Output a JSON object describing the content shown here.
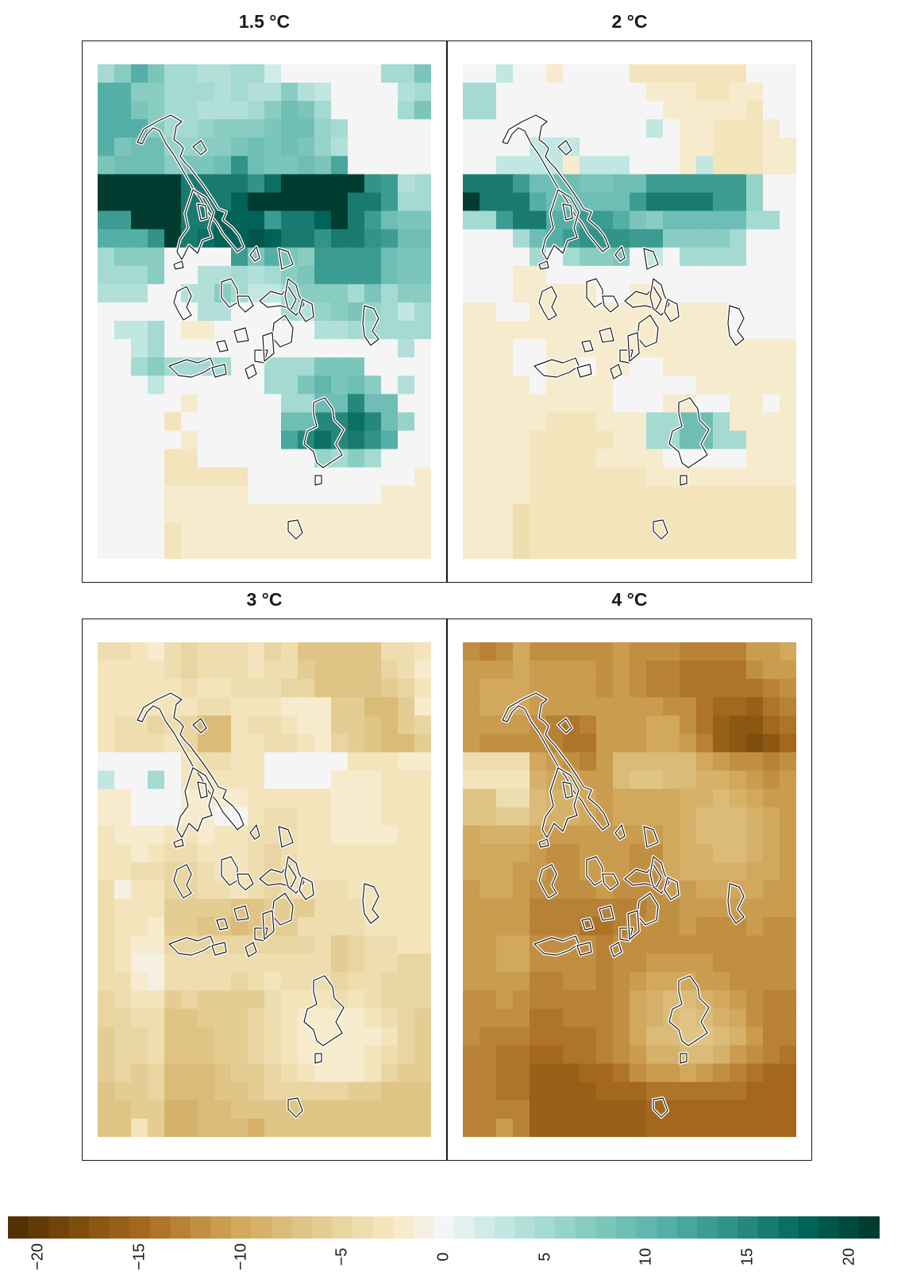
{
  "chart_data": {
    "type": "heatmap",
    "panels": [
      {
        "title": "1.5 °C",
        "rows": [
          "5 7 11 8 5 5 4 4 5 5 2 0 0 0 0 0 0 5 5 8",
          "11 11 7 7 5 5 5 4 5 4 4 7 4 3 0 0 0 0 4 5",
          "11 11 8 7 5 5 4 4 4 5 7 9 8 5 0 0 0 0 5 8",
          "11 11 11 7 5 5 6 7 7 7 8 9 9 6 5 0 0 0 0 0",
          "11 8 9 9 6 6 7 7 8 9 8 9 8 6 4 0 0 0 0 0",
          "8 9 9 9 7 8 8 9 14 9 8 8 9 8 12 0 0 0 0 0",
          "21 21 21 21 21 16 16 16 16 14 17 21 21 21 21 21 14 13 4 5",
          "21 21 21 21 21 16 16 16 18 21 21 21 21 21 21 16 16 13 5 5",
          "13 13 21 21 21 16 16 18 18 18 13 16 16 18 21 16 13 9 8 8",
          "11 11 11 14 21 16 17 18 18 19 18 16 16 14 16 16 14 13 9 9",
          "5 7 7 7 0 0 0 0 13 8 11 8 7 13 13 13 13 9 8 8",
          "5 5 5 7 0 0 4 4 5 4 5 7 8 13 13 13 13 9 8 8",
          "4 4 4 0 0 4 4 7 5 3 3 5 7 7 7 5 8 5 7 7",
          "0 0 0 0 0 0 4 4 0 0 0 5 4 6 7 8 6 5 3 5",
          "0 3 3 5 0 -2 -2 0 0 0 0 0 0 4 4 5 5 5 5 5",
          "0 0 3 5 0 0 0 0 0 0 0 0 0 0 0 0 0 0 4 0",
          "0 0 5 7 5 5 5 5 0 0 5 5 5 8 8 8 0 0 0 0",
          "0 0 0 3 0 0 0 0 0 0 5 5 8 10 8 9 7 0 4 0",
          "0 0 0 0 0 -2 0 0 0 0 0 5 5 9 9 15 9 9 0 0",
          "0 0 0 0 -3 0 0 0 0 0 0 9 9 15 15 17 15 9 6 0",
          "0 0 0 0 0 -2 0 0 0 0 0 12 15 17 15 16 14 11 0 0",
          "0 0 0 0 -3 -3 0 0 0 0 0 0 0 6 5 7 5 0 0 0",
          "0 0 0 0 -3 -3 -3 -3 -3 0 0 0 0 0 0 0 0 0 0 -2",
          "0 0 0 0 -2 -2 -2 -2 -2 0 0 0 0 0 0 0 0 -2 -2 -2",
          "0 0 0 0 -2 -2 -2 -2 -2 -2 -2 -2 -2 -2 -2 -2 -2 -2 -2 -2",
          "0 0 0 0 -3 -2 -2 -2 -2 -2 -2 -2 -2 -2 -2 -2 -2 -2 -2 -2",
          "0 0 0 0 -3 -2 -2 -2 -2 -2 -2 -2 -2 -2 -2 -2 -2 -2 -2 -2"
        ]
      },
      {
        "title": "2 °C",
        "rows": [
          "0 0 3 0 0 -2 0 0 0 0 -3 -3 -3 -3 -3 -3 -3 0 0 0",
          "5 5 0 0 0 0 0 0 0 0 0 -2 -2 -2 -3 -3 -2 -2 0 0",
          "5 5 0 0 0 0 0 0 0 0 0 0 -2 -2 -2 -2 -2 -3 0 0",
          "0 0 0 0 0 0 0 0 0 0 0 3 0 -2 -2 -3 -3 -3 -2 0",
          "0 0 0 0 3 3 3 0 0 0 0 0 0 -2 -2 -3 -3 -3 -2 -2",
          "0 0 3 3 3 3 -2 3 3 3 0 0 0 -2 3 -3 -3 -3 -2 -2",
          "16 16 16 13 9 9 9 8 8 9 9 13 13 13 13 13 13 6 0 0",
          "21 16 16 16 11 9 9 9 9 9 13 16 16 16 16 13 13 6 0 0",
          "5 5 13 16 16 11 11 13 13 11 8 7 9 9 9 9 9 5 5 0",
          "0 0 0 5 9 11 13 14 14 14 13 13 7 7 7 7 5 0 0 0",
          "0 0 0 0 5 0 5 7 7 8 0 3 0 5 5 5 5 0 0 0",
          "0 0 0 -2 -2 0 0 0 0 0 0 0 0 0 0 0 0 0 0 0",
          "0 0 0 -2 -2 -2 -2 -2 0 0 -2 -2 0 0 0 0 0 0 0 0",
          "-2 -2 0 0 -2 -2 -2 -2 -2 -2 -2 -2 -2 -2 -2 -2 0 0 0 0",
          "-2 -2 -2 -2 -2 -2 -2 -2 -2 -2 -2 -2 -2 -2 -2 -2 0 0 0 0",
          "-2 -2 -2 0 0 -2 -2 -2 -2 -2 -2 -2 -2 -2 -2 -2 -2 -2 -2 -2",
          "-2 -2 -2 0 0 -2 -2 0 -2 -2 0 0 -2 -2 -2 -2 -2 -2 -2 -2",
          "-2 -2 -2 -2 0 -2 -2 -2 -2 0 0 0 0 0 -2 -2 -2 -2 -2 -2",
          "-2 -2 -2 -2 -2 -2 -2 -2 -2 0 0 0 -2 -2 0 0 -2 -2 0 -2",
          "-2 -2 -2 -2 -2 -3 -3 -3 -2 -2 -2 5 5 9 9 5 -2 -2 -2 -2",
          "-2 -2 -2 -2 -3 -3 -3 -3 -3 -2 -2 5 5 9 9 5 5 -2 -2 -2",
          "-2 -2 -2 -2 -3 -3 -3 -3 -2 -2 -2 -2 0 0 0 0 0 -2 -2 -2",
          "-2 -2 -2 -2 -3 -3 -3 -3 -3 -3 -3 -2 -2 -2 -2 -2 -2 -2 -2 -2",
          "-2 -2 -2 -2 -3 -3 -3 -3 -3 -3 -3 -3 -3 -3 -3 -3 -3 -3 -3 -3",
          "-2 -2 -2 -4 -3 -3 -3 -3 -3 -3 -3 -3 -3 -3 -3 -3 -3 -3 -3 -3",
          "-2 -2 -2 -4 -3 -3 -3 -3 -3 -3 -3 -3 -3 -3 -3 -3 -3 -3 -3 -3",
          "-2 -2 -2 -4 -3 -3 -3 -3 -3 -3 -3 -3 -3 -3 -3 -3 -3 -3 -3 -3"
        ]
      },
      {
        "title": "3 °C",
        "rows": [
          "-4 -4 -3 -2 -4 -5 -4 -4 -4 -3 -5 -4 -7 -7 -7 -7 -7 -4 -4 -3",
          "-3 -3 -3 -3 -4 -5 -4 -4 -4 -3 -4 -4 -6 -7 -7 -7 -7 -5 -4 -2",
          "-3 -3 -3 -3 -3 -4 -3 -3 -4 -4 -4 -5 -5 -7 -7 -7 -7 -6 -5 -3",
          "-3 -3 -3 -3 -3 -3 -4 -4 -3 -3 -3 -2 -2 -2 -6 -6 -8 -8 -6 -2",
          "-3 -4 -4 -5 -4 -5 -8 -8 -3 -4 -4 -3 -2 -2 -6 -6 -7 -8 -6 -5",
          "-3 -4 -4 -4 -3 -5 -8 -8 -3 -3 -4 -4 -3 -2 -5 -6 -7 -8 -8 -6",
          "0 0 0 0 0 -3 -4 -4 -3 -3 0 0 0 0 0 -3 -3 -3 -2 -2",
          "3 0 0 5 0 -3 -3 -3 -3 -3 0 0 0 0 -2 -2 -2 -3 -3 -3",
          "-2 -2 0 0 0 -2 -2 -2 -2 -3 -3 -3 -3 -3 -2 -2 -2 -3 -3 -3",
          "-2 -2 0 0 0 -2 -2 0 0 -3 -4 -4 -3 -3 -2 -2 -2 -3 -3 -3",
          "-3 -2 -2 -2 -3 -3 -2 -3 -3 -4 -4 -4 -3 -3 -2 -2 -2 -2 -3 -3",
          "-3 -3 -2 -3 -4 -4 -3 -3 -3 -4 -5 -4 -3 -3 -3 -3 -3 -3 -3 -3",
          "-3 -3 -4 -4 -5 -5 -4 -3 -3 -4 -5 -4 -3 -3 -3 -3 -3 -3 -3 -3",
          "-4 -1 -3 -3 -5 -5 -4 -4 -3 -4 -5 -4 -4 -4 -4 -3 -3 -3 -3 -3",
          "-4 -3 -3 -3 -6 -6 -6 -6 -7 -7 -6 -6 -6 -4 -4 -4 -3 -3 -3 -3",
          "-4 -3 -3 -2 -6 -6 -7 -7 -8 -7 -6 -6 -4 -4 -4 -4 -3 -3 -3 -3",
          "-4 -3 -2 -2 -5 -5 -5 -5 -5 -5 -5 -5 -5 -4 -6 -5 -4 -4 -3 -3",
          "-4 -3 -1 -1 -4 -4 -4 -4 -4 -4 -4 -4 -4 -4 -6 -5 -4 -4 -5 -5",
          "-4 -4 -2 -1 -4 -4 -4 -4 -5 -4 -3 -4 -4 -4 -5 -4 -4 -5 -5 -5",
          "-5 -4 -3 -3 -6 -5 -6 -6 -6 -6 -4 -3 -3 -3 -4 -3 -4 -5 -5 -5",
          "-5 -5 -4 -4 -7 -7 -6 -6 -6 -5 -4 -3 -2 -2 -2 -2 -3 -4 -5 -6",
          "-6 -5 -5 -4 -7 -7 -7 -6 -6 -5 -4 -3 -2 -2 -2 -2 -2 -3 -5 -6",
          "-6 -5 -5 -4 -7 -7 -7 -6 -6 -5 -4 -3 -2 -2 -2 -2 -3 -4 -5 -6",
          "-6 -5 -6 -5 -8 -8 -8 -7 -6 -6 -5 -4 -3 -2 -2 -2 -3 -5 -6 -6",
          "-7 -6 -6 -5 -8 -8 -8 -7 -7 -6 -5 -5 -5 -5 -5 -6 -6 -7 -7 -7",
          "-7 -7 -6 -6 -9 -9 -8 -8 -7 -7 -7 -7 -7 -7 -7 -7 -7 -7 -7 -7",
          "-7 -7 -3 -6 -9 -9 -8 -8 -8 -9 -7 -7 -7 -7 -7 -7 -7 -7 -7 -7"
        ]
      },
      {
        "title": "4 °C",
        "rows": [
          "-12 -13 -12 -10 -12 -12 -12 -12 -12 -11 -12 -12 -12 -13 -13 -13 -13 -11 -11 -10",
          "-11 -11 -11 -10 -11 -11 -11 -11 -12 -11 -12 -13 -13 -14 -14 -14 -14 -12 -11 -11",
          "-11 -10 -10 -10 -11 -11 -11 -11 -12 -11 -12 -13 -13 -14 -14 -14 -14 -14 -13 -12",
          "-11 -10 -10 -10 -11 -11 -11 -11 -11 -11 -11 -11 -12 -12 -14 -15 -15 -16 -14 -13",
          "-11 -11 -11 -11 -12 -13 -14 -13 -11 -11 -11 -10 -10 -12 -14 -16 -17 -17 -15 -14",
          "-11 -12 -12 -12 -12 -13 -14 -14 -11 -11 -11 -10 -10 -11 -13 -16 -17 -18 -17 -15",
          "-4 -4 -4 -4 -10 -11 -12 -13 -11 -8 -8 -8 -8 -8 -10 -11 -12 -12 -13 -12",
          "-3 -3 -3 -3 -9 -10 -10 -11 -11 -8 -7 -7 -8 -8 -9 -9 -10 -11 -12 -11",
          "-7 -7 -4 -4 -8 -9 -9 -10 -11 -10 -10 -10 -10 -9 -9 -8 -9 -10 -11 -11",
          "-7 -7 -6 -6 -8 -9 -9 -10 -11 -10 -10 -10 -10 -9 -8 -8 -8 -9 -10 -11",
          "-10 -9 -9 -9 -10 -11 -11 -11 -11 -11 -11 -11 -10 -9 -8 -8 -8 -9 -10 -11",
          "-10 -10 -10 -10 -11 -12 -12 -11 -11 -11 -12 -12 -10 -9 -9 -8 -8 -9 -10 -11",
          "-10 -10 -10 -11 -11 -12 -12 -11 -11 -11 -12 -12 -10 -9 -9 -9 -9 -10 -10 -11",
          "-11 -10 -10 -11 -12 -12 -12 -12 -11 -12 -12 -12 -11 -11 -10 -10 -10 -10 -11 -11",
          "-11 -11 -11 -11 -13 -13 -13 -13 -13 -13 -13 -12 -12 -11 -11 -11 -11 -11 -11 -11",
          "-11 -11 -11 -11 -13 -13 -13 -14 -14 -13 -12 -12 -12 -11 -12 -12 -12 -11 -12 -12",
          "-11 -11 -10 -10 -12 -12 -12 -12 -13 -12 -12 -12 -12 -12 -12 -12 -12 -12 -12 -12",
          "-11 -11 -10 -10 -12 -12 -12 -12 -13 -12 -12 -11 -11 -11 -11 -12 -12 -12 -12 -12",
          "-11 -11 -11 -11 -13 -13 -12 -12 -13 -12 -11 -10 -10 -10 -11 -11 -12 -12 -12 -12",
          "-12 -12 -11 -12 -13 -13 -13 -13 -13 -12 -10 -9 -8 -8 -9 -10 -11 -12 -13 -13",
          "-12 -12 -12 -12 -14 -14 -13 -13 -13 -12 -10 -9 -8 -7 -8 -9 -10 -12 -13 -13",
          "-12 -13 -13 -13 -14 -14 -14 -14 -13 -12 -10 -8 -8 -7 -7 -8 -9 -11 -13 -13",
          "-13 -13 -14 -14 -15 -15 -14 -14 -13 -12 -11 -9 -9 -8 -8 -9 -11 -12 -13 -14",
          "-13 -13 -14 -14 -16 -16 -16 -15 -15 -14 -12 -11 -11 -10 -11 -12 -13 -14 -15 -15",
          "-13 -13 -14 -14 -16 -16 -16 -16 -15 -15 -15 -14 -14 -14 -14 -14 -14 -15 -15 -15",
          "-13 -13 -13 -13 -16 -16 -16 -16 -16 -16 -16 -15 -15 -15 -15 -15 -15 -15 -15 -15",
          "-13 -13 -11 -13 -16 -16 -16 -16 -16 -16 -16 -15 -15 -15 -15 -15 -15 -15 -15 -15"
        ]
      }
    ],
    "colorbar": {
      "range": [
        -21,
        21
      ],
      "ticks": [
        -20,
        -15,
        -10,
        -5,
        0,
        5,
        10,
        15,
        20
      ],
      "tick_labels": [
        "−20",
        "−15",
        "−10",
        "−5",
        "0",
        "5",
        "10",
        "15",
        "20"
      ],
      "scheme": "BrBG (brown = negative, teal = positive)"
    },
    "overlay": "white-outlined island coastlines",
    "xlabel": "",
    "ylabel": "",
    "legend": "bottom"
  },
  "colors": {
    "brown": "#543005",
    "tan": "#d2b472",
    "neutral": "#f5f5f5",
    "teal": "#5ab4ac",
    "dark_teal": "#003c30"
  }
}
